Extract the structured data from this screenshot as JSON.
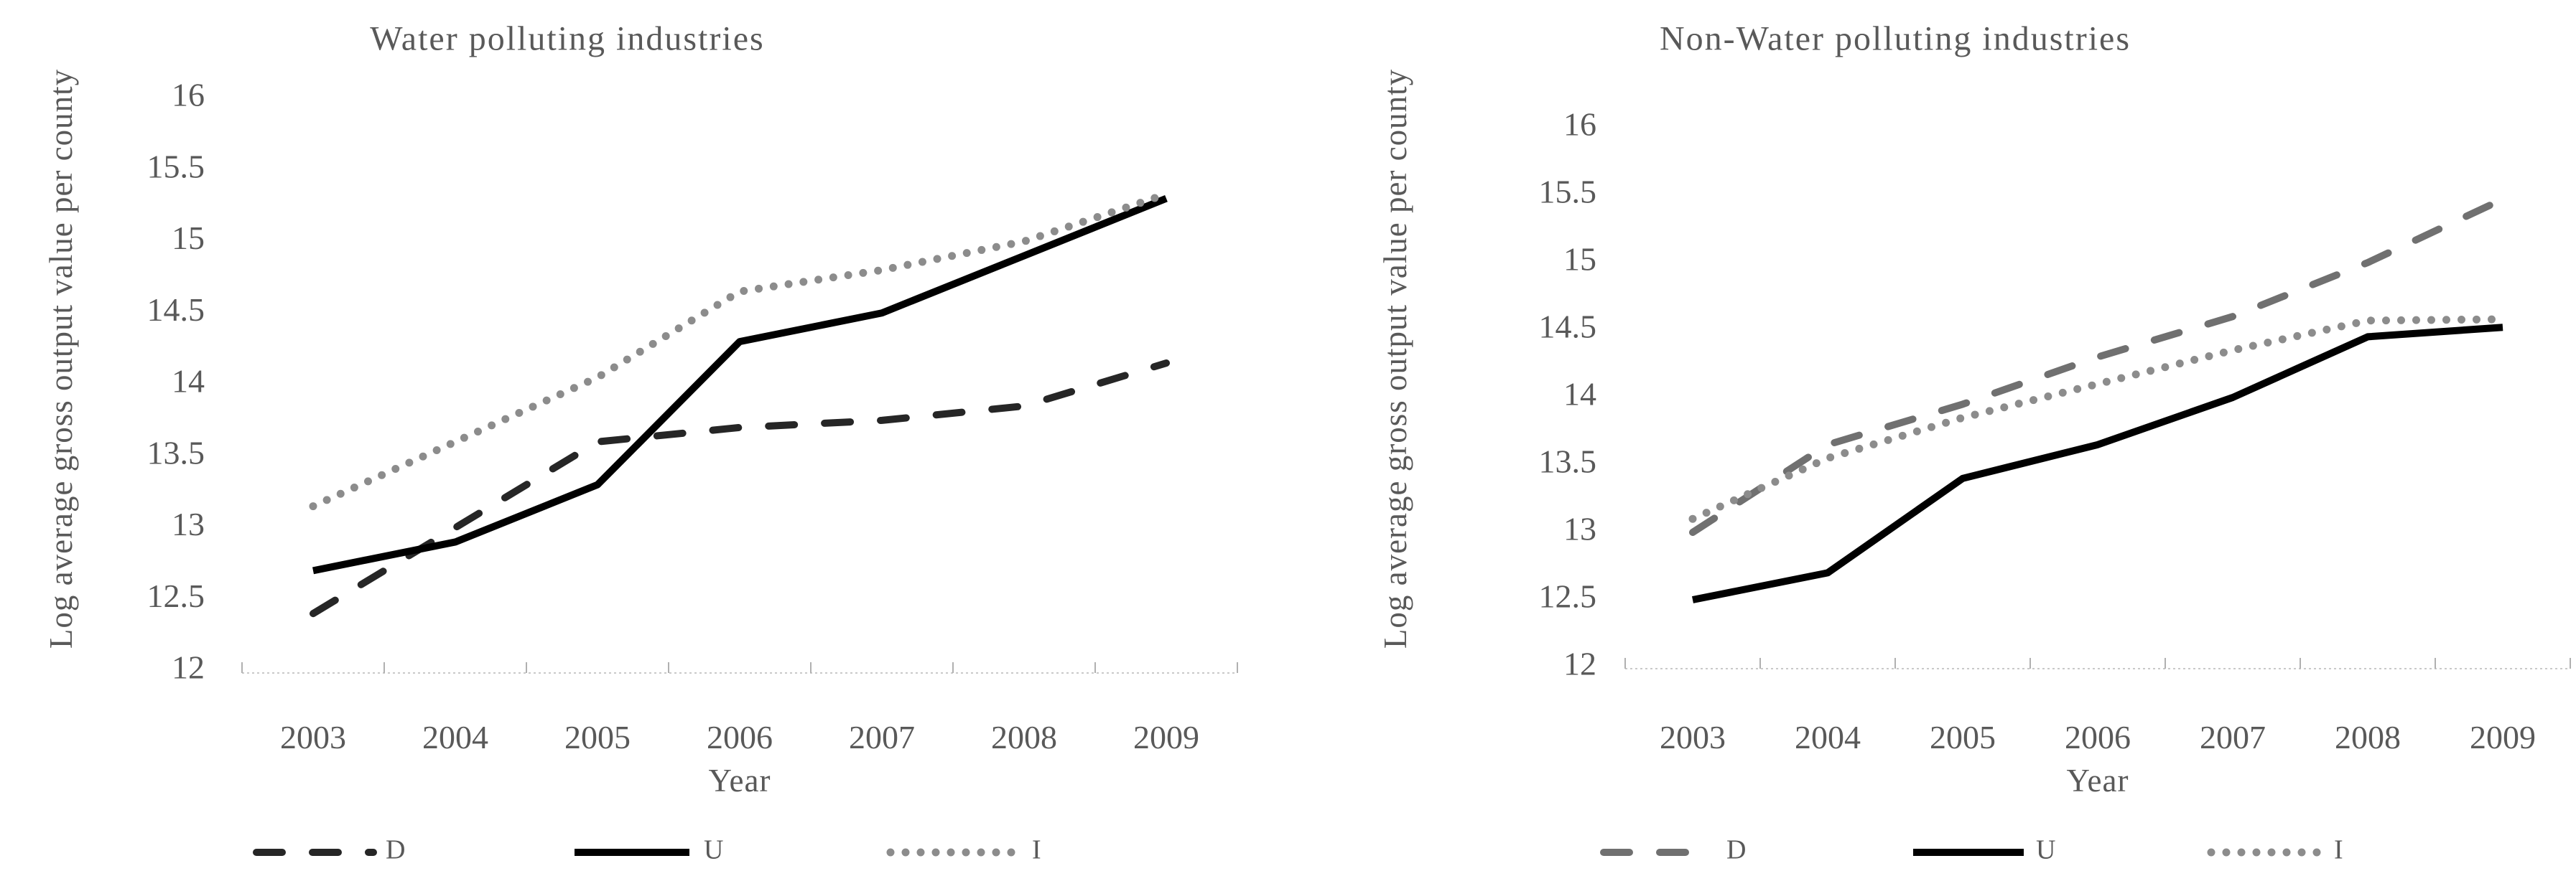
{
  "page": {
    "background": "#ffffff",
    "text_color": "#595959"
  },
  "chart_data": [
    {
      "type": "line",
      "title": "Water polluting industries",
      "xlabel": "Year",
      "ylabel": "Log average gross output value per county",
      "ylim": [
        12,
        16
      ],
      "ytick_step": 0.5,
      "grid": false,
      "legend_position": "bottom",
      "categories": [
        "2003",
        "2004",
        "2005",
        "2006",
        "2007",
        "2008",
        "2009"
      ],
      "series": [
        {
          "name": "D",
          "style": "dashed",
          "color": "#262626",
          "values": [
            12.4,
            13.0,
            13.6,
            13.7,
            13.75,
            13.85,
            14.15
          ]
        },
        {
          "name": "U",
          "style": "solid",
          "color": "#000000",
          "values": [
            12.7,
            12.9,
            13.3,
            14.3,
            14.5,
            14.9,
            15.3
          ]
        },
        {
          "name": "I",
          "style": "dotted",
          "color": "#8c8c8c",
          "values": [
            13.15,
            13.6,
            14.05,
            14.65,
            14.8,
            15.0,
            15.33
          ]
        }
      ]
    },
    {
      "type": "line",
      "title": "Non-Water polluting industries",
      "xlabel": "Year",
      "ylabel": "Log average gross output value per county",
      "ylim": [
        12,
        16
      ],
      "ytick_step": 0.5,
      "grid": false,
      "legend_position": "bottom",
      "categories": [
        "2003",
        "2004",
        "2005",
        "2006",
        "2007",
        "2008",
        "2009"
      ],
      "series": [
        {
          "name": "D",
          "style": "dashed",
          "color": "#707070",
          "values": [
            13.0,
            13.65,
            13.95,
            14.3,
            14.6,
            15.0,
            15.47
          ]
        },
        {
          "name": "U",
          "style": "solid",
          "color": "#000000",
          "values": [
            12.5,
            12.7,
            13.4,
            13.65,
            14.0,
            14.45,
            14.52
          ]
        },
        {
          "name": "I",
          "style": "dotted",
          "color": "#8c8c8c",
          "values": [
            13.1,
            13.55,
            13.85,
            14.1,
            14.35,
            14.57,
            14.58
          ]
        }
      ]
    }
  ]
}
